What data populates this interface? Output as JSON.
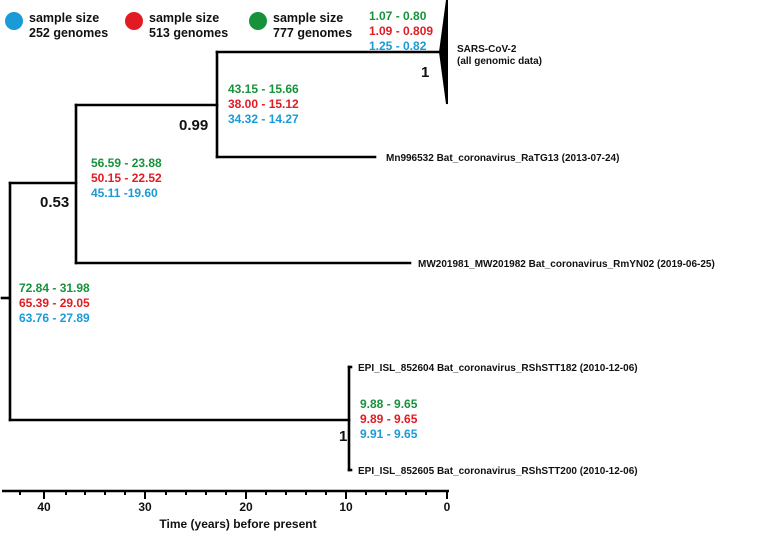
{
  "colors": {
    "blue": "#1a9ad6",
    "red": "#e21b23",
    "green": "#17923b",
    "black": "#000000"
  },
  "legend": [
    {
      "color": "blue",
      "line1": "sample size",
      "line2": "252 genomes"
    },
    {
      "color": "red",
      "line1": "sample size",
      "line2": "513 genomes"
    },
    {
      "color": "green",
      "line1": "sample size",
      "line2": "777 genomes"
    }
  ],
  "tips": {
    "sars_line1": "SARS-CoV-2",
    "sars_line2": "(all genomic data)",
    "ratg13": "Mn996532 Bat_coronavirus_RaTG13 (2013-07-24)",
    "rmyn02": "MW201981_MW201982 Bat_coronavirus_RmYN02 (2019-06-25)",
    "rshstt182": "EPI_ISL_852604 Bat_coronavirus_RShSTT182 (2010-12-06)",
    "rshstt200": "EPI_ISL_852605 Bat_coronavirus_RShSTT200 (2010-12-06)"
  },
  "support": {
    "sars_clade": "1",
    "sars_ratg13": "0.99",
    "with_rmyn02": "0.53",
    "rshstt": "1"
  },
  "intervals": {
    "sars_clade": {
      "green": "1.07 - 0.80",
      "red": "1.09 - 0.809",
      "blue": "1.25 - 0.82"
    },
    "sars_ratg13": {
      "green": "43.15 - 15.66",
      "red": "38.00 - 15.12",
      "blue": "34.32 - 14.27"
    },
    "with_rmyn02": {
      "green": "56.59 - 23.88",
      "red": "50.15 - 22.52",
      "blue": "45.11 -19.60"
    },
    "root": {
      "green": "72.84 - 31.98",
      "red": "65.39 - 29.05",
      "blue": "63.76 - 27.89"
    },
    "rshstt": {
      "green": "9.88 - 9.65",
      "red": "9.89 - 9.65",
      "blue": "9.91 - 9.65"
    }
  },
  "axis": {
    "label": "Time (years) before present",
    "ticks": [
      "40",
      "30",
      "20",
      "10",
      "0"
    ]
  }
}
